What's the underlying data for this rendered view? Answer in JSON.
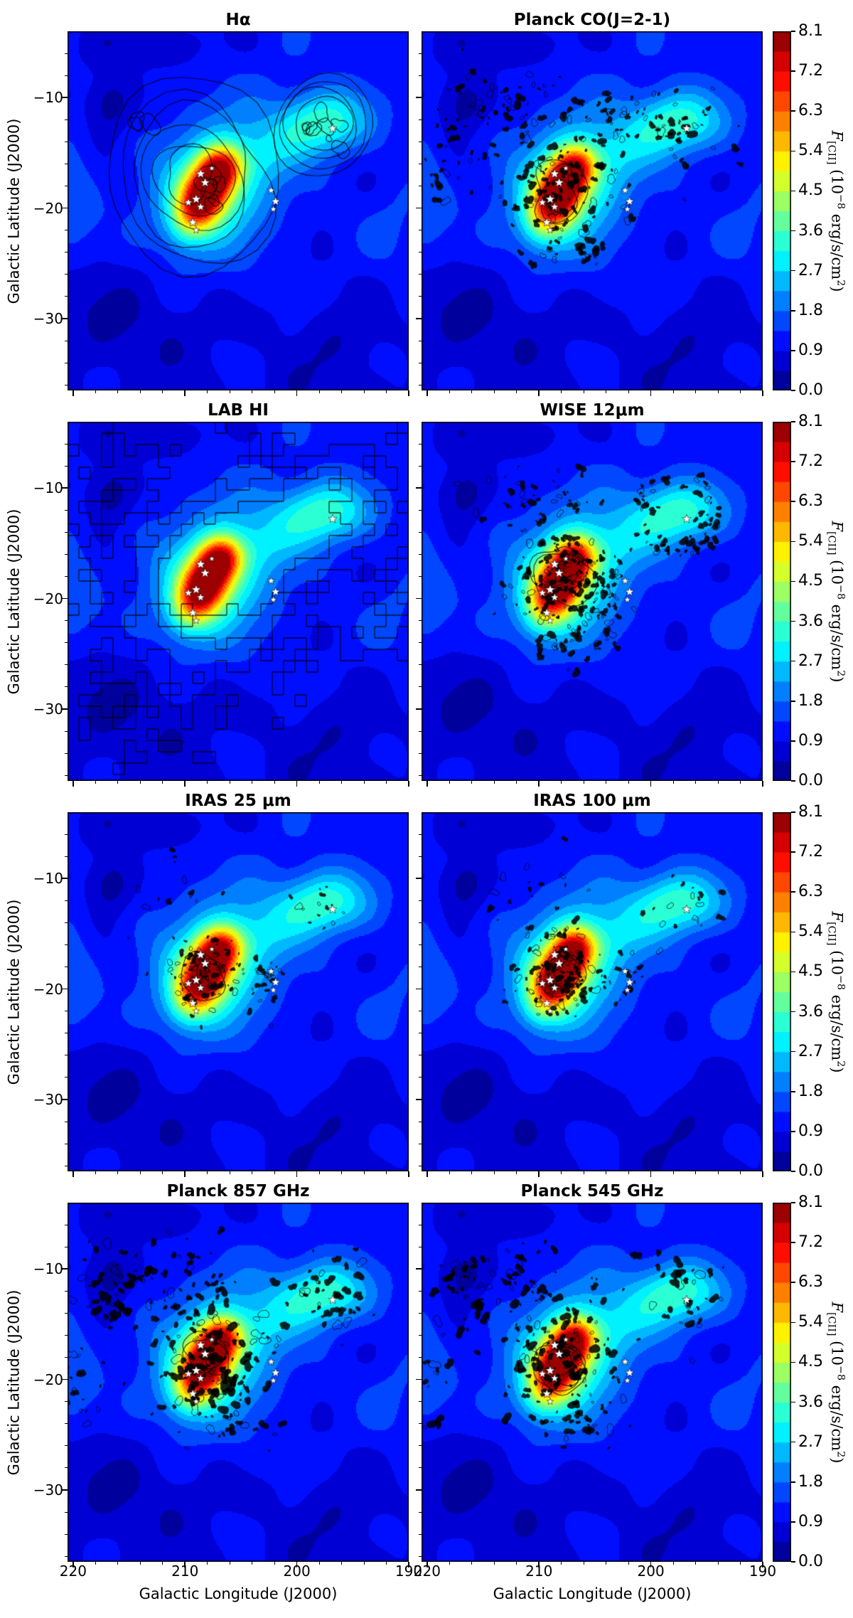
{
  "chart_data": {
    "type": "heatmap",
    "xlabel": "Galactic Longitude (J2000)",
    "ylabel": "Galactic Latitude (J2000)",
    "x_ticks": [
      220,
      210,
      200,
      190
    ],
    "x_tick_labels": [
      "220",
      "210",
      "200",
      "190"
    ],
    "y_ticks": [
      -10,
      -20,
      -30
    ],
    "y_tick_labels": [
      "−10",
      "−20",
      "−30"
    ],
    "x_range": [
      220.5,
      190.0
    ],
    "y_range": [
      -4.0,
      -36.5
    ],
    "x_minor_step": 2,
    "y_minor_step": 2,
    "grid": false,
    "colorbar": {
      "ticks": [
        "0.0",
        "0.9",
        "1.8",
        "2.7",
        "3.6",
        "4.5",
        "5.4",
        "6.3",
        "7.2",
        "8.1"
      ],
      "vmin": 0.0,
      "vmax": 8.1,
      "levels_step": 0.45,
      "colormap": "jet",
      "label": {
        "f": "F",
        "sub": "[CII]",
        "rest": " (10",
        "exp": "−8",
        "unit": " erg/s/cm",
        "exp2": "2",
        "close": ")"
      }
    },
    "panels": [
      {
        "title": "Hα",
        "overlay": {
          "type": "smooth",
          "seed": 7,
          "groups": [
            {
              "l": 209.2,
              "b": -17.2,
              "wob": 0.28,
              "radii": [
                2.3,
                3.4,
                4.6,
                5.8,
                7.1,
                8.3
              ]
            },
            {
              "l": 197.7,
              "b": -12.2,
              "wob": 0.1,
              "radii": [
                2.5,
                3.25,
                3.9,
                4.5
              ]
            }
          ],
          "blobs": [
            {
              "l": 197.7,
              "b": -12.2,
              "n": 9,
              "rmin": 0.25,
              "rmax": 0.85,
              "spread": 1.6
            },
            {
              "l": 214.0,
              "b": -12.0,
              "n": 3,
              "rmin": 0.4,
              "rmax": 1.0,
              "spread": 1.0
            },
            {
              "l": 207.6,
              "b": -18.6,
              "n": 6,
              "rmin": 0.3,
              "rmax": 0.9,
              "spread": 1.2
            }
          ]
        }
      },
      {
        "title": "Planck CO(J=2-1)",
        "overlay": {
          "type": "speckle",
          "seed": 21,
          "n": 310,
          "smin": 1.5,
          "smax": 6.5,
          "fillProb": 0.72,
          "foci": [
            {
              "l": 208.0,
              "b": -18.3,
              "sl": 2.6,
              "sb": 2.3,
              "w": 5
            },
            {
              "l": 212.0,
              "b": -11.0,
              "sl": 4.2,
              "sb": 2.2,
              "w": 3
            },
            {
              "l": 203.5,
              "b": -12.5,
              "sl": 2.6,
              "sb": 2.0,
              "w": 2
            },
            {
              "l": 196.5,
              "b": -12.8,
              "sl": 2.6,
              "sb": 2.0,
              "w": 2
            },
            {
              "l": 218.5,
              "b": -16.5,
              "sl": 1.4,
              "sb": 2.2,
              "w": 1
            },
            {
              "l": 206.5,
              "b": -23.5,
              "sl": 2.2,
              "sb": 1.4,
              "w": 1
            }
          ],
          "loops": {
            "l": 208.2,
            "b": -18.6,
            "n": 3,
            "rmin": 1.2,
            "rmax": 3.2,
            "spread": 1.2
          }
        }
      },
      {
        "title": "LAB HI",
        "overlay": {
          "type": "blocky",
          "seed": 5,
          "cell": 16,
          "noise": 0.28,
          "thresholds": [
            0.3,
            0.55,
            0.8
          ],
          "comps": [
            {
              "l": 207.3,
              "b": -17.6,
              "a": 1.0,
              "sl": 5.6,
              "sb": 4.6
            },
            {
              "l": 199.3,
              "b": -13.0,
              "a": 0.75,
              "sl": 4.2,
              "sb": 2.6
            },
            {
              "l": 205.0,
              "b": -5.0,
              "a": 0.3,
              "sl": 12.0,
              "sb": 2.5
            },
            {
              "l": 213.0,
              "b": -31.0,
              "a": 0.18,
              "sl": 6.0,
              "sb": 3.0
            },
            {
              "l": 192.5,
              "b": -19.5,
              "a": 0.3,
              "sl": 2.8,
              "sb": 3.5
            },
            {
              "l": 195.0,
              "b": -9.0,
              "a": 0.45,
              "sl": 3.5,
              "sb": 2.0
            }
          ]
        }
      },
      {
        "title": "WISE 12μm",
        "overlay": {
          "type": "speckle",
          "seed": 33,
          "n": 330,
          "smin": 1.4,
          "smax": 6.0,
          "fillProb": 0.7,
          "foci": [
            {
              "l": 207.9,
              "b": -18.3,
              "sl": 2.2,
              "sb": 2.2,
              "w": 6
            },
            {
              "l": 210.5,
              "b": -10.5,
              "sl": 3.2,
              "sb": 1.8,
              "w": 1.5
            },
            {
              "l": 204.0,
              "b": -20.0,
              "sl": 1.5,
              "sb": 1.5,
              "w": 1
            },
            {
              "l": 206.8,
              "b": -23.8,
              "sl": 1.8,
              "sb": 1.1,
              "w": 1
            }
          ],
          "ring": {
            "l": 197.6,
            "b": -12.3,
            "r": 3.4,
            "sr": 0.5,
            "w": 3
          },
          "loops": {
            "l": 208.0,
            "b": -18.4,
            "n": 2,
            "rmin": 1.5,
            "rmax": 2.8,
            "spread": 1.0
          }
        }
      },
      {
        "title": "IRAS 25 μm",
        "overlay": {
          "type": "speckle",
          "seed": 41,
          "n": 160,
          "smin": 1.2,
          "smax": 5.0,
          "fillProb": 0.6,
          "foci": [
            {
              "l": 208.1,
              "b": -18.6,
              "sl": 1.9,
              "sb": 1.9,
              "w": 6
            },
            {
              "l": 202.2,
              "b": -19.2,
              "sl": 0.9,
              "sb": 1.4,
              "w": 1
            },
            {
              "l": 197.6,
              "b": -12.4,
              "sl": 1.6,
              "sb": 1.1,
              "w": 0.8
            },
            {
              "l": 211.0,
              "b": -11.0,
              "sl": 2.2,
              "sb": 1.4,
              "w": 0.6
            }
          ],
          "loops": {
            "l": 208.2,
            "b": -18.7,
            "n": 2,
            "rmin": 1.0,
            "rmax": 2.2,
            "spread": 0.8
          }
        }
      },
      {
        "title": "IRAS 100 μm",
        "overlay": {
          "type": "speckle",
          "seed": 55,
          "n": 200,
          "smin": 1.2,
          "smax": 5.5,
          "fillProb": 0.65,
          "foci": [
            {
              "l": 208.0,
              "b": -18.4,
              "sl": 2.1,
              "sb": 2.1,
              "w": 6
            },
            {
              "l": 197.6,
              "b": -12.4,
              "sl": 1.9,
              "sb": 1.3,
              "w": 1
            },
            {
              "l": 210.5,
              "b": -11.0,
              "sl": 2.5,
              "sb": 1.5,
              "w": 0.8
            },
            {
              "l": 202.2,
              "b": -19.5,
              "sl": 1.0,
              "sb": 1.5,
              "w": 0.8
            }
          ],
          "loops": {
            "l": 208.1,
            "b": -18.6,
            "n": 2,
            "rmin": 1.2,
            "rmax": 2.5,
            "spread": 0.9
          }
        }
      },
      {
        "title": "Planck 857 GHz",
        "overlay": {
          "type": "speckle",
          "seed": 63,
          "n": 330,
          "smin": 1.5,
          "smax": 7.0,
          "fillProb": 0.7,
          "foci": [
            {
              "l": 207.8,
              "b": -18.4,
              "sl": 2.4,
              "sb": 2.4,
              "w": 5
            },
            {
              "l": 210.5,
              "b": -11.5,
              "sl": 3.4,
              "sb": 2.1,
              "w": 2
            },
            {
              "l": 216.5,
              "b": -12.0,
              "sl": 1.5,
              "sb": 2.0,
              "w": 1
            },
            {
              "l": 196.5,
              "b": -12.6,
              "sl": 2.4,
              "sb": 1.9,
              "w": 1.5
            },
            {
              "l": 206.0,
              "b": -24.0,
              "sl": 2.4,
              "sb": 1.4,
              "w": 1
            },
            {
              "l": 219.5,
              "b": -20.0,
              "sl": 1.0,
              "sb": 2.0,
              "w": 0.7
            }
          ],
          "loops": {
            "l": 208.0,
            "b": -18.5,
            "n": 3,
            "rmin": 1.2,
            "rmax": 3.0,
            "spread": 1.1
          }
        }
      },
      {
        "title": "Planck 545 GHz",
        "overlay": {
          "type": "speckle",
          "seed": 77,
          "n": 300,
          "smin": 1.5,
          "smax": 7.0,
          "fillProb": 0.7,
          "foci": [
            {
              "l": 207.8,
              "b": -18.4,
              "sl": 2.4,
              "sb": 2.4,
              "w": 5
            },
            {
              "l": 210.5,
              "b": -11.5,
              "sl": 3.4,
              "sb": 2.1,
              "w": 2
            },
            {
              "l": 216.5,
              "b": -12.0,
              "sl": 1.5,
              "sb": 2.0,
              "w": 1
            },
            {
              "l": 196.5,
              "b": -12.6,
              "sl": 2.4,
              "sb": 1.9,
              "w": 1.5
            },
            {
              "l": 206.0,
              "b": -24.0,
              "sl": 2.4,
              "sb": 1.4,
              "w": 1
            },
            {
              "l": 219.5,
              "b": -20.0,
              "sl": 1.0,
              "sb": 2.0,
              "w": 0.7
            }
          ],
          "loops": {
            "l": 208.0,
            "b": -18.5,
            "n": 3,
            "rmin": 1.2,
            "rmax": 3.0,
            "spread": 1.1
          }
        }
      }
    ],
    "field": {
      "base": 1.15,
      "grad": 0.01,
      "noise": [
        {
          "a": 0.22,
          "fl": 0.55,
          "pl": 1.7,
          "fb": 0.5,
          "pb": 0.4
        },
        {
          "a": 0.13,
          "fl": 0.9,
          "pl": 0.3,
          "fb": 0.7,
          "pb": 2.0
        }
      ],
      "gaussians": [
        {
          "l": 208.3,
          "b": -18.9,
          "a": 5.8,
          "sl": 2.4,
          "sb": 1.35,
          "th": 118
        },
        {
          "l": 206.7,
          "b": -16.3,
          "a": 2.6,
          "sl": 1.25,
          "sb": 1.25,
          "th": 0
        },
        {
          "l": 207.8,
          "b": -18.2,
          "a": 1.9,
          "sl": 3.3,
          "sb": 2.6,
          "th": 118
        },
        {
          "l": 207.2,
          "b": -18.4,
          "a": 1.1,
          "sl": 5.4,
          "sb": 4.6,
          "th": 110
        },
        {
          "l": 197.6,
          "b": -12.2,
          "a": 2.35,
          "sl": 2.9,
          "sb": 2.0,
          "th": 0
        },
        {
          "l": 202.5,
          "b": -14.8,
          "a": 0.85,
          "sl": 2.7,
          "sb": 1.8,
          "th": 155
        },
        {
          "l": 216.7,
          "b": -10.5,
          "a": -1.1,
          "sl": 1.5,
          "sb": 1.9,
          "th": 0
        },
        {
          "l": 213.0,
          "b": -5.2,
          "a": -0.6,
          "sl": 4.5,
          "sb": 1.6,
          "th": 0
        },
        {
          "l": 220.3,
          "b": -19.5,
          "a": 0.8,
          "sl": 1.7,
          "sb": 3.4,
          "th": 0
        },
        {
          "l": 212.5,
          "b": -31.0,
          "a": -0.4,
          "sl": 4.5,
          "sb": 3.0,
          "th": 0
        },
        {
          "l": 196.0,
          "b": -33.0,
          "a": -0.35,
          "sl": 4.0,
          "sb": 2.8,
          "th": 0
        },
        {
          "l": 217.5,
          "b": -27.5,
          "a": -0.3,
          "sl": 3.0,
          "sb": 3.0,
          "th": 0
        },
        {
          "l": 191.3,
          "b": -22.0,
          "a": 0.5,
          "sl": 2.0,
          "sb": 2.8,
          "th": 0
        },
        {
          "l": 205.0,
          "b": -33.5,
          "a": 0.35,
          "sl": 1.6,
          "sb": 1.2,
          "th": 0
        },
        {
          "l": 190.8,
          "b": -33.5,
          "a": 0.3,
          "sl": 2.2,
          "sb": 1.8,
          "th": 0
        }
      ]
    },
    "stars": [
      {
        "l": 208.6,
        "b": -16.9,
        "r": 7
      },
      {
        "l": 208.2,
        "b": -17.7,
        "r": 7
      },
      {
        "l": 207.6,
        "b": -16.4,
        "r": 4.5
      },
      {
        "l": 209.0,
        "b": -19.2,
        "r": 7
      },
      {
        "l": 209.7,
        "b": -19.5,
        "r": 6
      },
      {
        "l": 208.6,
        "b": -19.9,
        "r": 6
      },
      {
        "l": 209.3,
        "b": -21.3,
        "r": 6.5
      },
      {
        "l": 209.0,
        "b": -22.0,
        "r": 5
      },
      {
        "l": 202.3,
        "b": -18.4,
        "r": 5.5
      },
      {
        "l": 201.9,
        "b": -19.4,
        "r": 6.5
      },
      {
        "l": 202.1,
        "b": -20.1,
        "r": 5
      },
      {
        "l": 196.8,
        "b": -12.8,
        "r": 6.5
      }
    ]
  }
}
